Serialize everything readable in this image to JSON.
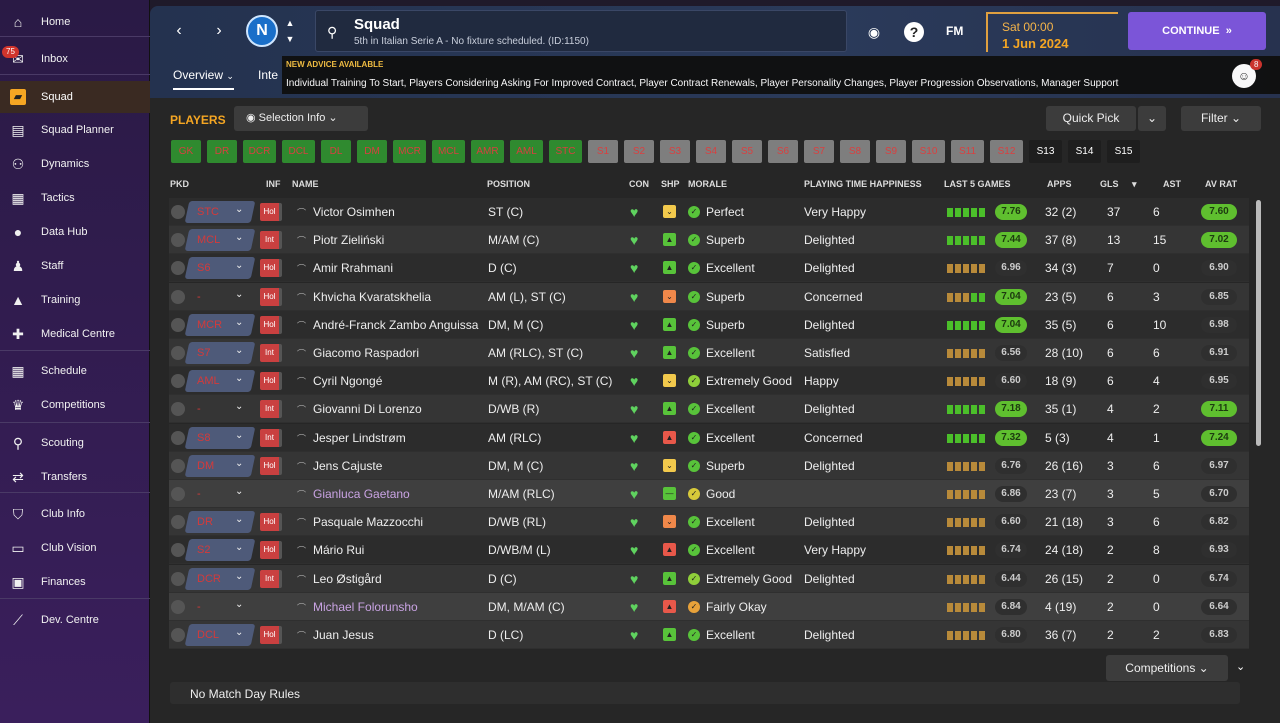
{
  "sidebar": {
    "items": [
      {
        "label": "Home",
        "icon": "home-icon",
        "glyph": "⌂"
      },
      {
        "label": "Inbox",
        "icon": "inbox-icon",
        "glyph": "✉",
        "badge": "75"
      },
      {
        "label": "Squad",
        "icon": "squad-icon",
        "glyph": "▰"
      },
      {
        "label": "Squad Planner",
        "icon": "planner-icon",
        "glyph": "▤"
      },
      {
        "label": "Dynamics",
        "icon": "dynamics-icon",
        "glyph": "⚇"
      },
      {
        "label": "Tactics",
        "icon": "tactics-icon",
        "glyph": "▦"
      },
      {
        "label": "Data Hub",
        "icon": "data-hub-icon",
        "glyph": "●"
      },
      {
        "label": "Staff",
        "icon": "staff-icon",
        "glyph": "♟"
      },
      {
        "label": "Training",
        "icon": "training-icon",
        "glyph": "▲"
      },
      {
        "label": "Medical Centre",
        "icon": "medical-icon",
        "glyph": "✚"
      },
      {
        "label": "Schedule",
        "icon": "schedule-icon",
        "glyph": "▦"
      },
      {
        "label": "Competitions",
        "icon": "trophy-icon",
        "glyph": "♛"
      },
      {
        "label": "Scouting",
        "icon": "scouting-icon",
        "glyph": "⚲"
      },
      {
        "label": "Transfers",
        "icon": "transfers-icon",
        "glyph": "⇄"
      },
      {
        "label": "Club Info",
        "icon": "club-info-icon",
        "glyph": "⛉"
      },
      {
        "label": "Club Vision",
        "icon": "club-vision-icon",
        "glyph": "▭"
      },
      {
        "label": "Finances",
        "icon": "finances-icon",
        "glyph": "▣"
      },
      {
        "label": "Dev. Centre",
        "icon": "dev-centre-icon",
        "glyph": "⟋"
      }
    ]
  },
  "header": {
    "club_logo_text": "N",
    "title": "Squad",
    "subtitle": "5th in Italian Serie A - No fixture scheduled. (ID:1150)",
    "fm_label": "FM",
    "date_day": "Sat 00:00",
    "date": "1 Jun 2024",
    "continue_label": "CONTINUE",
    "continue_glyph": "»",
    "tabs": [
      "Overview",
      "Inte"
    ],
    "advice_title": "NEW ADVICE AVAILABLE",
    "advice_body": "Individual Training To Start, Players Considering Asking For Improved Contract, Player Contract Renewals, Player Personality Changes, Player Progression Observations, Manager Support",
    "advice_badge": "8"
  },
  "toolbar": {
    "players_title": "PLAYERS",
    "selection_info": "Selection Info",
    "quick_pick": "Quick Pick",
    "filter": "Filter"
  },
  "slots": [
    "GK",
    "DR",
    "DCR",
    "DCL",
    "DL",
    "DM",
    "MCR",
    "MCL",
    "AMR",
    "AML",
    "STC",
    "S1",
    "S2",
    "S3",
    "S4",
    "S5",
    "S6",
    "S7",
    "S8",
    "S9",
    "S10",
    "S11",
    "S12",
    "S13",
    "S14",
    "S15"
  ],
  "columns": [
    "PKD",
    "INF",
    "NAME",
    "POSITION",
    "CON",
    "SHP",
    "MORALE",
    "PLAYING TIME HAPPINESS",
    "LAST 5 GAMES",
    "APPS",
    "GLS",
    "AST",
    "AV RAT"
  ],
  "colors": {
    "accent": "#f5a623",
    "green": "#5fbf2f",
    "red_pick": "#d43a3a",
    "continue": "#7b55d8"
  },
  "players": [
    {
      "pick": "STC",
      "inf": "Hol",
      "name": "Victor Osimhen",
      "position": "ST (C)",
      "shp": "yellow",
      "mor": "Perfect",
      "pth": "Very Happy",
      "form": [
        "g",
        "g",
        "g",
        "g",
        "g"
      ],
      "last5": "7.76",
      "l5hi": true,
      "apps": "32 (2)",
      "gls": "37",
      "ast": "6",
      "avrat": "7.60",
      "avhi": true
    },
    {
      "pick": "MCL",
      "inf": "Int",
      "name": "Piotr Zieliński",
      "position": "M/AM (C)",
      "shp": "green",
      "mor": "Superb",
      "pth": "Delighted",
      "form": [
        "g",
        "g",
        "g",
        "g",
        "g"
      ],
      "last5": "7.44",
      "l5hi": true,
      "apps": "37 (8)",
      "gls": "13",
      "ast": "15",
      "avrat": "7.02",
      "avhi": true
    },
    {
      "pick": "S6",
      "inf": "Hol",
      "name": "Amir Rrahmani",
      "position": "D (C)",
      "shp": "green",
      "mor": "Excellent",
      "pth": "Delighted",
      "form": [
        "o",
        "o",
        "o",
        "o",
        "o"
      ],
      "last5": "6.96",
      "l5hi": false,
      "apps": "34 (3)",
      "gls": "7",
      "ast": "0",
      "avrat": "6.90",
      "avhi": false
    },
    {
      "pick": "-",
      "inf": "Hol",
      "name": "Khvicha Kvaratskhelia",
      "position": "AM (L), ST (C)",
      "shp": "orange",
      "mor": "Superb",
      "pth": "Concerned",
      "form": [
        "o",
        "o",
        "o",
        "g",
        "g"
      ],
      "last5": "7.04",
      "l5hi": true,
      "apps": "23 (5)",
      "gls": "6",
      "ast": "3",
      "avrat": "6.85",
      "avhi": false
    },
    {
      "pick": "MCR",
      "inf": "Hol",
      "name": "André-Franck Zambo Anguissa",
      "position": "DM, M (C)",
      "shp": "green",
      "mor": "Superb",
      "pth": "Delighted",
      "form": [
        "g",
        "g",
        "g",
        "g",
        "g"
      ],
      "last5": "7.04",
      "l5hi": true,
      "apps": "35 (5)",
      "gls": "6",
      "ast": "10",
      "avrat": "6.98",
      "avhi": false
    },
    {
      "pick": "S7",
      "inf": "Int",
      "name": "Giacomo Raspadori",
      "position": "AM (RLC), ST (C)",
      "shp": "green",
      "mor": "Excellent",
      "pth": "Satisfied",
      "form": [
        "o",
        "o",
        "o",
        "o",
        "o"
      ],
      "last5": "6.56",
      "l5hi": false,
      "apps": "28 (10)",
      "gls": "6",
      "ast": "6",
      "avrat": "6.91",
      "avhi": false
    },
    {
      "pick": "AML",
      "inf": "Hol",
      "name": "Cyril Ngongé",
      "position": "M (R), AM (RC), ST (C)",
      "shp": "yellow",
      "mor": "Extremely Good",
      "pth": "Happy",
      "form": [
        "o",
        "o",
        "o",
        "o",
        "o"
      ],
      "last5": "6.60",
      "l5hi": false,
      "apps": "18 (9)",
      "gls": "6",
      "ast": "4",
      "avrat": "6.95",
      "avhi": false
    },
    {
      "pick": "-",
      "inf": "Int",
      "name": "Giovanni Di Lorenzo",
      "position": "D/WB (R)",
      "shp": "green",
      "mor": "Excellent",
      "pth": "Delighted",
      "form": [
        "g",
        "g",
        "g",
        "g",
        "g"
      ],
      "last5": "7.18",
      "l5hi": true,
      "apps": "35 (1)",
      "gls": "4",
      "ast": "2",
      "avrat": "7.11",
      "avhi": true
    },
    {
      "pick": "S8",
      "inf": "Int",
      "name": "Jesper Lindstrøm",
      "position": "AM (RLC)",
      "shp": "red",
      "mor": "Excellent",
      "pth": "Concerned",
      "form": [
        "g",
        "g",
        "g",
        "g",
        "g"
      ],
      "last5": "7.32",
      "l5hi": true,
      "apps": "5 (3)",
      "gls": "4",
      "ast": "1",
      "avrat": "7.24",
      "avhi": true
    },
    {
      "pick": "DM",
      "inf": "Hol",
      "name": "Jens Cajuste",
      "position": "DM, M (C)",
      "shp": "yellow",
      "mor": "Superb",
      "pth": "Delighted",
      "form": [
        "o",
        "o",
        "o",
        "o",
        "o"
      ],
      "last5": "6.76",
      "l5hi": false,
      "apps": "26 (16)",
      "gls": "3",
      "ast": "6",
      "avrat": "6.97",
      "avhi": false
    },
    {
      "pick": "-",
      "inf": "",
      "name": "Gianluca Gaetano",
      "position": "M/AM (RLC)",
      "shp": "greenbar",
      "mor": "Good",
      "pth": "",
      "form": [
        "o",
        "o",
        "o",
        "o",
        "o"
      ],
      "last5": "6.86",
      "l5hi": false,
      "apps": "23 (7)",
      "gls": "3",
      "ast": "5",
      "avrat": "6.70",
      "avhi": false,
      "loan": true
    },
    {
      "pick": "DR",
      "inf": "Hol",
      "name": "Pasquale Mazzocchi",
      "position": "D/WB (RL)",
      "shp": "orange",
      "mor": "Excellent",
      "pth": "Delighted",
      "form": [
        "o",
        "o",
        "o",
        "o",
        "o"
      ],
      "last5": "6.60",
      "l5hi": false,
      "apps": "21 (18)",
      "gls": "3",
      "ast": "6",
      "avrat": "6.82",
      "avhi": false
    },
    {
      "pick": "S2",
      "inf": "Hol",
      "name": "Mário Rui",
      "position": "D/WB/M (L)",
      "shp": "red",
      "mor": "Excellent",
      "pth": "Very Happy",
      "form": [
        "o",
        "o",
        "o",
        "o",
        "o"
      ],
      "last5": "6.74",
      "l5hi": false,
      "apps": "24 (18)",
      "gls": "2",
      "ast": "8",
      "avrat": "6.93",
      "avhi": false
    },
    {
      "pick": "DCR",
      "inf": "Int",
      "name": "Leo Østigård",
      "position": "D (C)",
      "shp": "green",
      "mor": "Extremely Good",
      "pth": "Delighted",
      "form": [
        "o",
        "o",
        "o",
        "o",
        "o"
      ],
      "last5": "6.44",
      "l5hi": false,
      "apps": "26 (15)",
      "gls": "2",
      "ast": "0",
      "avrat": "6.74",
      "avhi": false
    },
    {
      "pick": "-",
      "inf": "",
      "name": "Michael Folorunsho",
      "position": "DM, M/AM (C)",
      "shp": "red",
      "mor": "Fairly Okay",
      "pth": "",
      "form": [
        "o",
        "o",
        "o",
        "o",
        "o"
      ],
      "last5": "6.84",
      "l5hi": false,
      "apps": "4 (19)",
      "gls": "2",
      "ast": "0",
      "avrat": "6.64",
      "avhi": false,
      "loan": true
    },
    {
      "pick": "DCL",
      "inf": "Hol",
      "name": "Juan Jesus",
      "position": "D (LC)",
      "shp": "green",
      "mor": "Excellent",
      "pth": "Delighted",
      "form": [
        "o",
        "o",
        "o",
        "o",
        "o"
      ],
      "last5": "6.80",
      "l5hi": false,
      "apps": "36 (7)",
      "gls": "2",
      "ast": "2",
      "avrat": "6.83",
      "avhi": false
    }
  ],
  "bottom": {
    "competitions": "Competitions",
    "match_day_rules": "No Match Day Rules"
  }
}
